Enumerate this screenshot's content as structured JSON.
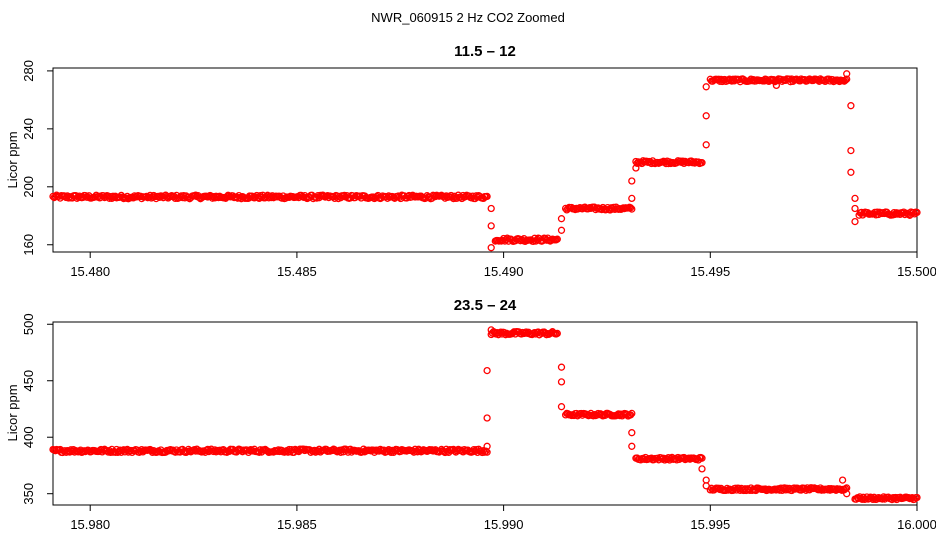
{
  "figure_title": "NWR_060915  2 Hz CO2 Zoomed",
  "chart_data": [
    {
      "type": "scatter",
      "title": "11.5 – 12",
      "ylabel": "Licor ppm",
      "xlabel": "",
      "xlim": [
        15.4791,
        15.5
      ],
      "ylim": [
        155,
        282
      ],
      "xticks": [
        "15.480",
        "15.485",
        "15.490",
        "15.495",
        "15.500"
      ],
      "xtick_values": [
        15.48,
        15.485,
        15.49,
        15.495,
        15.5
      ],
      "yticks": [
        "160",
        "200",
        "240",
        "280"
      ],
      "ytick_values": [
        160,
        200,
        240,
        280
      ],
      "marker_color": "#ff0000",
      "segments": [
        {
          "x0": 15.4791,
          "x1": 15.4896,
          "y": 193,
          "noise": 1.2
        },
        {
          "x0": 15.4898,
          "x1": 15.4913,
          "y": 163.5,
          "noise": 1.2
        },
        {
          "x0": 15.4915,
          "x1": 15.4931,
          "y": 185,
          "noise": 1.0
        },
        {
          "x0": 15.4932,
          "x1": 15.4948,
          "y": 217,
          "noise": 1.0
        },
        {
          "x0": 15.495,
          "x1": 15.4983,
          "y": 273.5,
          "noise": 1.0
        },
        {
          "x0": 15.4986,
          "x1": 15.5,
          "y": 181.5,
          "noise": 1.2
        }
      ],
      "points": [
        {
          "x": 15.4897,
          "y": 185
        },
        {
          "x": 15.4897,
          "y": 173
        },
        {
          "x": 15.4897,
          "y": 158
        },
        {
          "x": 15.4914,
          "y": 170
        },
        {
          "x": 15.4914,
          "y": 178
        },
        {
          "x": 15.4931,
          "y": 192
        },
        {
          "x": 15.4931,
          "y": 204
        },
        {
          "x": 15.4932,
          "y": 213
        },
        {
          "x": 15.4949,
          "y": 229
        },
        {
          "x": 15.4949,
          "y": 249
        },
        {
          "x": 15.4949,
          "y": 269
        },
        {
          "x": 15.4966,
          "y": 270
        },
        {
          "x": 15.4983,
          "y": 278
        },
        {
          "x": 15.4984,
          "y": 256
        },
        {
          "x": 15.4984,
          "y": 225
        },
        {
          "x": 15.4984,
          "y": 210
        },
        {
          "x": 15.4985,
          "y": 192
        },
        {
          "x": 15.4985,
          "y": 185
        },
        {
          "x": 15.4985,
          "y": 176
        }
      ]
    },
    {
      "type": "scatter",
      "title": "23.5 – 24",
      "ylabel": "Licor ppm",
      "xlabel": "",
      "xlim": [
        15.9791,
        16.0
      ],
      "ylim": [
        340,
        502
      ],
      "xticks": [
        "15.980",
        "15.985",
        "15.990",
        "15.995",
        "16.000"
      ],
      "xtick_values": [
        15.98,
        15.985,
        15.99,
        15.995,
        16.0
      ],
      "yticks": [
        "350",
        "400",
        "450",
        "500"
      ],
      "ytick_values": [
        350,
        400,
        450,
        500
      ],
      "marker_color": "#ff0000",
      "segments": [
        {
          "x0": 15.9791,
          "x1": 15.9896,
          "y": 388,
          "noise": 1.5
        },
        {
          "x0": 15.9897,
          "x1": 15.9913,
          "y": 492,
          "noise": 1.5
        },
        {
          "x0": 15.9915,
          "x1": 15.9931,
          "y": 420,
          "noise": 1.2
        },
        {
          "x0": 15.9932,
          "x1": 15.9948,
          "y": 381,
          "noise": 1.2
        },
        {
          "x0": 15.995,
          "x1": 15.9983,
          "y": 354,
          "noise": 1.2
        },
        {
          "x0": 15.9985,
          "x1": 16.0,
          "y": 346,
          "noise": 1.2
        }
      ],
      "points": [
        {
          "x": 15.9896,
          "y": 392
        },
        {
          "x": 15.9896,
          "y": 417
        },
        {
          "x": 15.9896,
          "y": 459
        },
        {
          "x": 15.9897,
          "y": 495
        },
        {
          "x": 15.9914,
          "y": 462
        },
        {
          "x": 15.9914,
          "y": 449
        },
        {
          "x": 15.9914,
          "y": 427
        },
        {
          "x": 15.9931,
          "y": 404
        },
        {
          "x": 15.9931,
          "y": 392
        },
        {
          "x": 15.9948,
          "y": 372
        },
        {
          "x": 15.9949,
          "y": 362
        },
        {
          "x": 15.9949,
          "y": 357
        },
        {
          "x": 15.9982,
          "y": 362
        },
        {
          "x": 15.9983,
          "y": 350
        }
      ]
    }
  ]
}
